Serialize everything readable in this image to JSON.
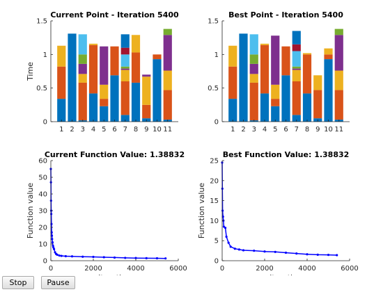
{
  "buttons": {
    "stop": "Stop",
    "pause": "Pause"
  },
  "colors": [
    "#0072BD",
    "#D95319",
    "#EDB120",
    "#7E2F8E",
    "#77AC30",
    "#4DBEEE",
    "#A2142F"
  ],
  "chart_data": [
    {
      "type": "bar",
      "stacked": true,
      "title": "Current Point - Iteration 5400",
      "xlabel": "",
      "ylabel": "Time",
      "categories": [
        "1",
        "2",
        "3",
        "4",
        "5",
        "6",
        "7",
        "8",
        "9",
        "10",
        "11"
      ],
      "ylim": [
        0,
        1.5
      ],
      "yticks": [
        0,
        0.5,
        1,
        1.5
      ],
      "segments": [
        [
          0.34,
          0.48,
          0.31
        ],
        [
          1.31
        ],
        [
          0.02,
          0.56,
          0.13,
          0.15,
          0.14,
          0.3
        ],
        [
          0.42,
          0.72,
          0.02
        ],
        [
          0.23,
          0.11,
          0.21,
          0.57
        ],
        [
          0.69,
          0.43
        ],
        [
          0.1,
          0.5,
          0.17,
          0.02,
          0.03,
          0.18,
          0.1,
          0.2
        ],
        [
          0.58,
          0.45,
          0.26
        ],
        [
          0.05,
          0.2,
          0.42,
          0.03
        ],
        [
          0.93,
          0.07
        ],
        [
          0.03,
          0.44,
          0.29,
          0.53,
          0.09
        ]
      ]
    },
    {
      "type": "bar",
      "stacked": true,
      "title": "Best Point - Iteration 5400",
      "xlabel": "",
      "ylabel": "",
      "categories": [
        "1",
        "2",
        "3",
        "4",
        "5",
        "6",
        "7",
        "8",
        "9",
        "10",
        "11"
      ],
      "ylim": [
        0,
        1.5
      ],
      "yticks": [
        0,
        0.5,
        1,
        1.5
      ],
      "segments": [
        [
          0.34,
          0.48,
          0.31
        ],
        [
          1.31
        ],
        [
          0.02,
          0.56,
          0.13,
          0.15,
          0.14,
          0.3
        ],
        [
          0.42,
          0.72,
          0.02
        ],
        [
          0.23,
          0.11,
          0.21,
          0.73
        ],
        [
          0.69,
          0.43
        ],
        [
          0.1,
          0.5,
          0.17,
          0.02,
          0.03,
          0.23,
          0.1,
          0.2
        ],
        [
          0.42,
          0.58,
          0.02
        ],
        [
          0.05,
          0.42,
          0.22
        ],
        [
          0.93,
          0.07,
          0.09
        ],
        [
          0.03,
          0.44,
          0.29,
          0.53,
          0.09
        ]
      ]
    },
    {
      "type": "scatter",
      "title": "Current Function Value: 1.38832",
      "xlabel": "Iteration",
      "ylabel": "Function value",
      "xlim": [
        0,
        6000
      ],
      "ylim": [
        0,
        60
      ],
      "xticks": [
        0,
        2000,
        4000,
        6000
      ],
      "yticks": [
        0,
        10,
        20,
        30,
        40,
        50,
        60
      ],
      "points": [
        [
          0,
          55
        ],
        [
          5,
          47
        ],
        [
          10,
          36
        ],
        [
          15,
          30
        ],
        [
          20,
          28
        ],
        [
          30,
          22
        ],
        [
          40,
          17
        ],
        [
          50,
          15
        ],
        [
          60,
          13
        ],
        [
          80,
          11
        ],
        [
          100,
          9
        ],
        [
          120,
          8
        ],
        [
          150,
          7
        ],
        [
          200,
          5
        ],
        [
          250,
          4
        ],
        [
          300,
          3.6
        ],
        [
          400,
          3.1
        ],
        [
          500,
          2.9
        ],
        [
          700,
          2.7
        ],
        [
          1000,
          2.6
        ],
        [
          1500,
          2.4
        ],
        [
          2000,
          2.3
        ],
        [
          2500,
          2.1
        ],
        [
          3000,
          1.9
        ],
        [
          3500,
          1.7
        ],
        [
          4000,
          1.6
        ],
        [
          4500,
          1.5
        ],
        [
          5000,
          1.45
        ],
        [
          5400,
          1.39
        ]
      ]
    },
    {
      "type": "scatter",
      "title": "Best Function Value: 1.38832",
      "xlabel": "Iteration",
      "ylabel": "Function value",
      "xlim": [
        0,
        6000
      ],
      "ylim": [
        0,
        25
      ],
      "xticks": [
        0,
        2000,
        4000,
        6000
      ],
      "yticks": [
        0,
        5,
        10,
        15,
        20,
        25
      ],
      "points": [
        [
          0,
          24.5
        ],
        [
          10,
          18
        ],
        [
          20,
          12.5
        ],
        [
          40,
          11
        ],
        [
          60,
          10
        ],
        [
          80,
          8.5
        ],
        [
          150,
          8.2
        ],
        [
          200,
          6
        ],
        [
          300,
          4.5
        ],
        [
          400,
          3.5
        ],
        [
          600,
          3
        ],
        [
          800,
          2.8
        ],
        [
          1000,
          2.6
        ],
        [
          1500,
          2.5
        ],
        [
          2000,
          2.3
        ],
        [
          2500,
          2.2
        ],
        [
          3000,
          2
        ],
        [
          3500,
          1.8
        ],
        [
          4000,
          1.6
        ],
        [
          4500,
          1.5
        ],
        [
          5000,
          1.45
        ],
        [
          5400,
          1.39
        ]
      ]
    }
  ]
}
